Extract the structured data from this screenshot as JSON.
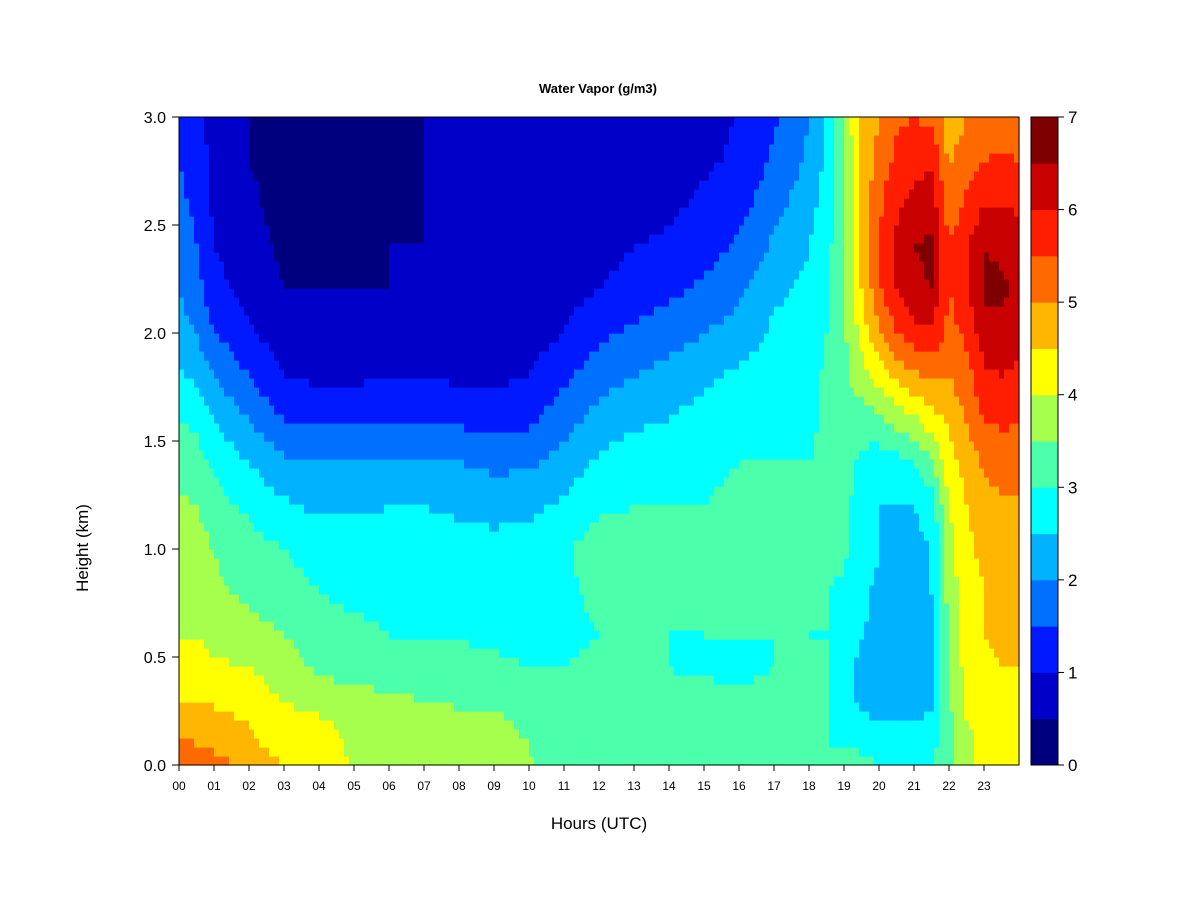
{
  "chart_data": {
    "type": "heatmap",
    "title": "Water Vapor (g/m3)",
    "xlabel": "Hours (UTC)",
    "ylabel": "Height (km)",
    "x_ticks": [
      "00",
      "01",
      "02",
      "03",
      "04",
      "05",
      "06",
      "07",
      "08",
      "09",
      "10",
      "11",
      "12",
      "13",
      "14",
      "15",
      "16",
      "17",
      "18",
      "19",
      "20",
      "21",
      "22",
      "23"
    ],
    "y_ticks": [
      "0.0",
      "0.5",
      "1.0",
      "1.5",
      "2.0",
      "2.5",
      "3.0"
    ],
    "xlim": [
      0,
      24
    ],
    "ylim": [
      0,
      3.0
    ],
    "colorbar": {
      "min": 0,
      "max": 7,
      "step": 0.5,
      "tick_labels": [
        "0",
        "1",
        "2",
        "3",
        "4",
        "5",
        "6",
        "7"
      ],
      "colors": [
        "#00007F",
        "#0000C8",
        "#0019FF",
        "#0070FF",
        "#00B2FF",
        "#00FFFF",
        "#4CFFAA",
        "#A6FF4C",
        "#FFFF00",
        "#FFB600",
        "#FF6A00",
        "#FF1E00",
        "#C80000",
        "#7F0000"
      ]
    },
    "columns_hour": [
      0,
      0.5,
      1,
      2,
      3,
      4,
      5,
      6,
      7,
      8,
      9,
      10,
      11,
      12,
      13,
      14,
      15,
      16,
      17,
      18,
      18.5,
      19,
      19.5,
      20,
      20.5,
      21,
      21.5,
      22,
      22.5,
      23,
      23.5,
      24
    ],
    "rows_height_km": [
      0.0,
      0.1,
      0.2,
      0.3,
      0.45,
      0.6,
      0.8,
      1.0,
      1.2,
      1.4,
      1.6,
      1.8,
      2.0,
      2.2,
      2.4,
      2.6,
      2.8,
      3.0
    ],
    "profiles_g_m3": [
      [
        5.3,
        5.1,
        4.9,
        4.5,
        4.3,
        4.0,
        3.9,
        3.8,
        3.6,
        3.3,
        3.0,
        2.6,
        2.2,
        2.0,
        1.8,
        1.6,
        1.5,
        1.4
      ],
      [
        5.3,
        5.0,
        4.8,
        4.5,
        4.2,
        4.0,
        3.8,
        3.7,
        3.5,
        3.2,
        2.9,
        2.4,
        2.0,
        1.7,
        1.5,
        1.4,
        1.3,
        1.2
      ],
      [
        5.2,
        4.9,
        4.7,
        4.4,
        4.1,
        3.8,
        3.6,
        3.5,
        3.2,
        2.9,
        2.5,
        2.0,
        1.5,
        1.2,
        1.0,
        0.9,
        0.8,
        0.8
      ],
      [
        4.9,
        4.6,
        4.5,
        4.2,
        4.0,
        3.7,
        3.4,
        3.2,
        2.9,
        2.5,
        2.0,
        1.5,
        1.1,
        0.8,
        0.7,
        0.6,
        0.5,
        0.5
      ],
      [
        4.5,
        4.3,
        4.2,
        4.0,
        3.8,
        3.5,
        3.2,
        3.0,
        2.6,
        2.1,
        1.5,
        1.0,
        0.7,
        0.5,
        0.4,
        0.3,
        0.3,
        0.3
      ],
      [
        4.2,
        4.2,
        4.1,
        3.8,
        3.4,
        3.2,
        3.0,
        2.8,
        2.4,
        2.0,
        1.4,
        0.9,
        0.6,
        0.5,
        0.4,
        0.3,
        0.3,
        0.3
      ],
      [
        4.0,
        3.9,
        3.8,
        3.7,
        3.3,
        3.1,
        2.9,
        2.8,
        2.4,
        2.0,
        1.4,
        0.9,
        0.6,
        0.5,
        0.4,
        0.3,
        0.3,
        0.4
      ],
      [
        4.0,
        3.9,
        3.8,
        3.6,
        3.2,
        3.0,
        2.9,
        2.8,
        2.5,
        2.1,
        1.5,
        1.0,
        0.7,
        0.5,
        0.5,
        0.4,
        0.4,
        0.4
      ],
      [
        3.9,
        3.8,
        3.7,
        3.5,
        3.2,
        3.0,
        2.9,
        2.8,
        2.5,
        2.1,
        1.5,
        1.0,
        0.7,
        0.5,
        0.5,
        0.5,
        0.5,
        0.5
      ],
      [
        3.9,
        3.8,
        3.7,
        3.4,
        3.1,
        3.0,
        2.8,
        2.7,
        2.4,
        2.0,
        1.4,
        0.9,
        0.7,
        0.5,
        0.5,
        0.5,
        0.5,
        0.5
      ],
      [
        3.8,
        3.7,
        3.6,
        3.4,
        3.1,
        2.9,
        2.8,
        2.7,
        2.3,
        1.9,
        1.3,
        0.9,
        0.6,
        0.5,
        0.5,
        0.5,
        0.5,
        0.5
      ],
      [
        3.6,
        3.5,
        3.4,
        3.3,
        3.0,
        2.9,
        2.8,
        2.7,
        2.4,
        1.9,
        1.4,
        1.0,
        0.8,
        0.6,
        0.5,
        0.5,
        0.5,
        0.5
      ],
      [
        3.0,
        3.0,
        3.1,
        3.2,
        3.0,
        2.9,
        2.9,
        2.9,
        2.6,
        2.2,
        1.8,
        1.4,
        1.0,
        0.8,
        0.6,
        0.6,
        0.5,
        0.5
      ],
      [
        3.0,
        3.1,
        3.2,
        3.3,
        3.1,
        3.0,
        3.1,
        3.3,
        2.9,
        2.6,
        2.2,
        1.8,
        1.4,
        1.0,
        0.8,
        0.7,
        0.6,
        0.6
      ],
      [
        3.0,
        3.0,
        3.1,
        3.2,
        3.0,
        3.0,
        3.1,
        3.3,
        3.0,
        2.8,
        2.4,
        2.0,
        1.6,
        1.2,
        1.0,
        0.8,
        0.7,
        0.7
      ],
      [
        3.0,
        3.0,
        3.1,
        3.2,
        3.0,
        3.0,
        3.0,
        3.2,
        3.0,
        2.8,
        2.5,
        2.2,
        1.8,
        1.4,
        1.1,
        0.9,
        0.8,
        0.8
      ],
      [
        3.0,
        3.0,
        3.1,
        3.2,
        2.9,
        3.0,
        3.0,
        3.2,
        3.0,
        2.9,
        2.7,
        2.4,
        2.0,
        1.6,
        1.3,
        1.1,
        0.9,
        0.9
      ],
      [
        3.0,
        3.0,
        3.1,
        3.1,
        2.9,
        3.0,
        3.1,
        3.3,
        3.1,
        3.0,
        2.8,
        2.6,
        2.2,
        1.9,
        1.6,
        1.3,
        1.1,
        1.0
      ],
      [
        3.0,
        3.0,
        3.1,
        3.1,
        3.0,
        3.0,
        3.1,
        3.2,
        3.1,
        3.0,
        2.9,
        2.8,
        2.6,
        2.4,
        2.1,
        1.8,
        1.6,
        1.4
      ],
      [
        3.0,
        3.0,
        3.0,
        3.0,
        3.0,
        3.0,
        3.0,
        3.0,
        3.0,
        3.0,
        2.9,
        2.8,
        2.7,
        2.6,
        2.5,
        2.3,
        2.1,
        2.0
      ],
      [
        3.0,
        3.0,
        3.0,
        3.0,
        3.0,
        3.0,
        3.0,
        3.1,
        3.1,
        3.1,
        3.1,
        3.1,
        3.0,
        2.9,
        2.8,
        2.7,
        2.6,
        2.5
      ],
      [
        3.2,
        3.0,
        2.8,
        2.6,
        2.6,
        2.8,
        2.9,
        3.1,
        3.1,
        3.2,
        3.3,
        3.4,
        3.4,
        3.4,
        3.5,
        3.5,
        3.5,
        3.6
      ],
      [
        3.1,
        2.9,
        2.6,
        2.4,
        2.4,
        2.5,
        2.6,
        2.8,
        2.8,
        2.9,
        3.2,
        3.8,
        4.2,
        4.5,
        4.6,
        4.6,
        4.6,
        4.6
      ],
      [
        3.0,
        2.8,
        2.5,
        2.3,
        2.3,
        2.4,
        2.4,
        2.5,
        2.5,
        2.7,
        3.4,
        4.2,
        4.9,
        5.4,
        5.5,
        5.4,
        5.2,
        5.0
      ],
      [
        3.0,
        2.8,
        2.5,
        2.3,
        2.3,
        2.3,
        2.4,
        2.4,
        2.5,
        2.8,
        3.7,
        4.6,
        5.5,
        6.0,
        6.1,
        5.9,
        5.6,
        5.4
      ],
      [
        3.0,
        2.8,
        2.5,
        2.3,
        2.3,
        2.3,
        2.4,
        2.4,
        2.5,
        3.0,
        3.9,
        4.9,
        5.8,
        6.4,
        6.5,
        6.2,
        5.8,
        5.5
      ],
      [
        3.0,
        2.8,
        2.6,
        2.4,
        2.4,
        2.4,
        2.5,
        2.5,
        2.7,
        3.4,
        4.3,
        5.1,
        5.9,
        6.5,
        6.6,
        6.3,
        5.9,
        5.4
      ],
      [
        3.4,
        3.3,
        3.3,
        3.5,
        3.5,
        3.6,
        3.7,
        3.8,
        4.0,
        4.3,
        4.6,
        5.0,
        5.3,
        5.5,
        5.5,
        5.2,
        4.9,
        4.7
      ],
      [
        3.8,
        3.9,
        4.0,
        4.1,
        4.2,
        4.2,
        4.3,
        4.4,
        4.5,
        4.7,
        5.0,
        5.3,
        5.6,
        5.9,
        5.9,
        5.6,
        5.3,
        5.0
      ],
      [
        4.2,
        4.1,
        4.1,
        4.3,
        4.4,
        4.5,
        4.5,
        4.6,
        4.8,
        5.1,
        5.5,
        5.9,
        6.3,
        6.6,
        6.5,
        6.0,
        5.5,
        5.1
      ],
      [
        4.4,
        4.2,
        4.2,
        4.4,
        4.5,
        4.6,
        4.6,
        4.7,
        4.9,
        5.2,
        5.6,
        6.0,
        6.3,
        6.6,
        6.4,
        6.0,
        5.6,
        5.2
      ],
      [
        4.5,
        4.3,
        4.2,
        4.4,
        4.5,
        4.6,
        4.6,
        4.7,
        4.9,
        5.2,
        5.5,
        5.9,
        6.2,
        6.4,
        6.3,
        5.9,
        5.5,
        5.2
      ]
    ]
  }
}
